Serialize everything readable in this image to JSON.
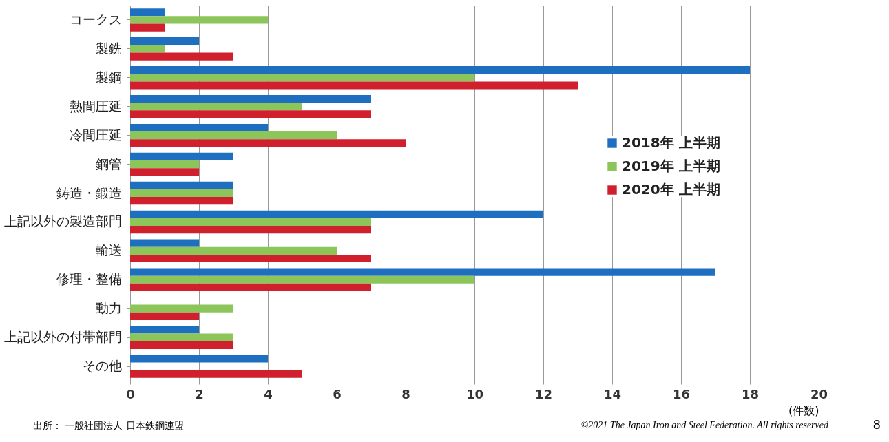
{
  "chart_data": {
    "type": "bar",
    "orientation": "horizontal",
    "xlabel": "(件数)",
    "categories": [
      "コークス",
      "製銑",
      "製鋼",
      "熱間圧延",
      "冷間圧延",
      "鋼管",
      "鋳造・鍛造",
      "上記以外の製造部門",
      "輸送",
      "修理・整備",
      "動力",
      "上記以外の付帯部門",
      "その他"
    ],
    "series": [
      {
        "name": "2018年 上半期",
        "color": "#1f6fc0",
        "values": [
          1,
          2,
          18,
          7,
          4,
          3,
          3,
          12,
          2,
          17,
          0,
          2,
          4
        ]
      },
      {
        "name": "2019年 上半期",
        "color": "#8cc65a",
        "values": [
          4,
          1,
          10,
          5,
          6,
          2,
          3,
          7,
          6,
          10,
          3,
          3,
          0
        ]
      },
      {
        "name": "2020年 上半期",
        "color": "#d0202e",
        "values": [
          1,
          3,
          13,
          7,
          8,
          2,
          3,
          7,
          7,
          7,
          2,
          3,
          5
        ]
      }
    ],
    "xlim": [
      0,
      20
    ],
    "xticks": [
      0,
      2,
      4,
      6,
      8,
      10,
      12,
      14,
      16,
      18,
      20
    ],
    "grid": "x",
    "legend": "right",
    "annotations": [
      "出所： 一般社団法人 日本鉄鋼連盟",
      "©2021 The Japan Iron and Steel Federation. All rights reserved",
      "8"
    ]
  }
}
